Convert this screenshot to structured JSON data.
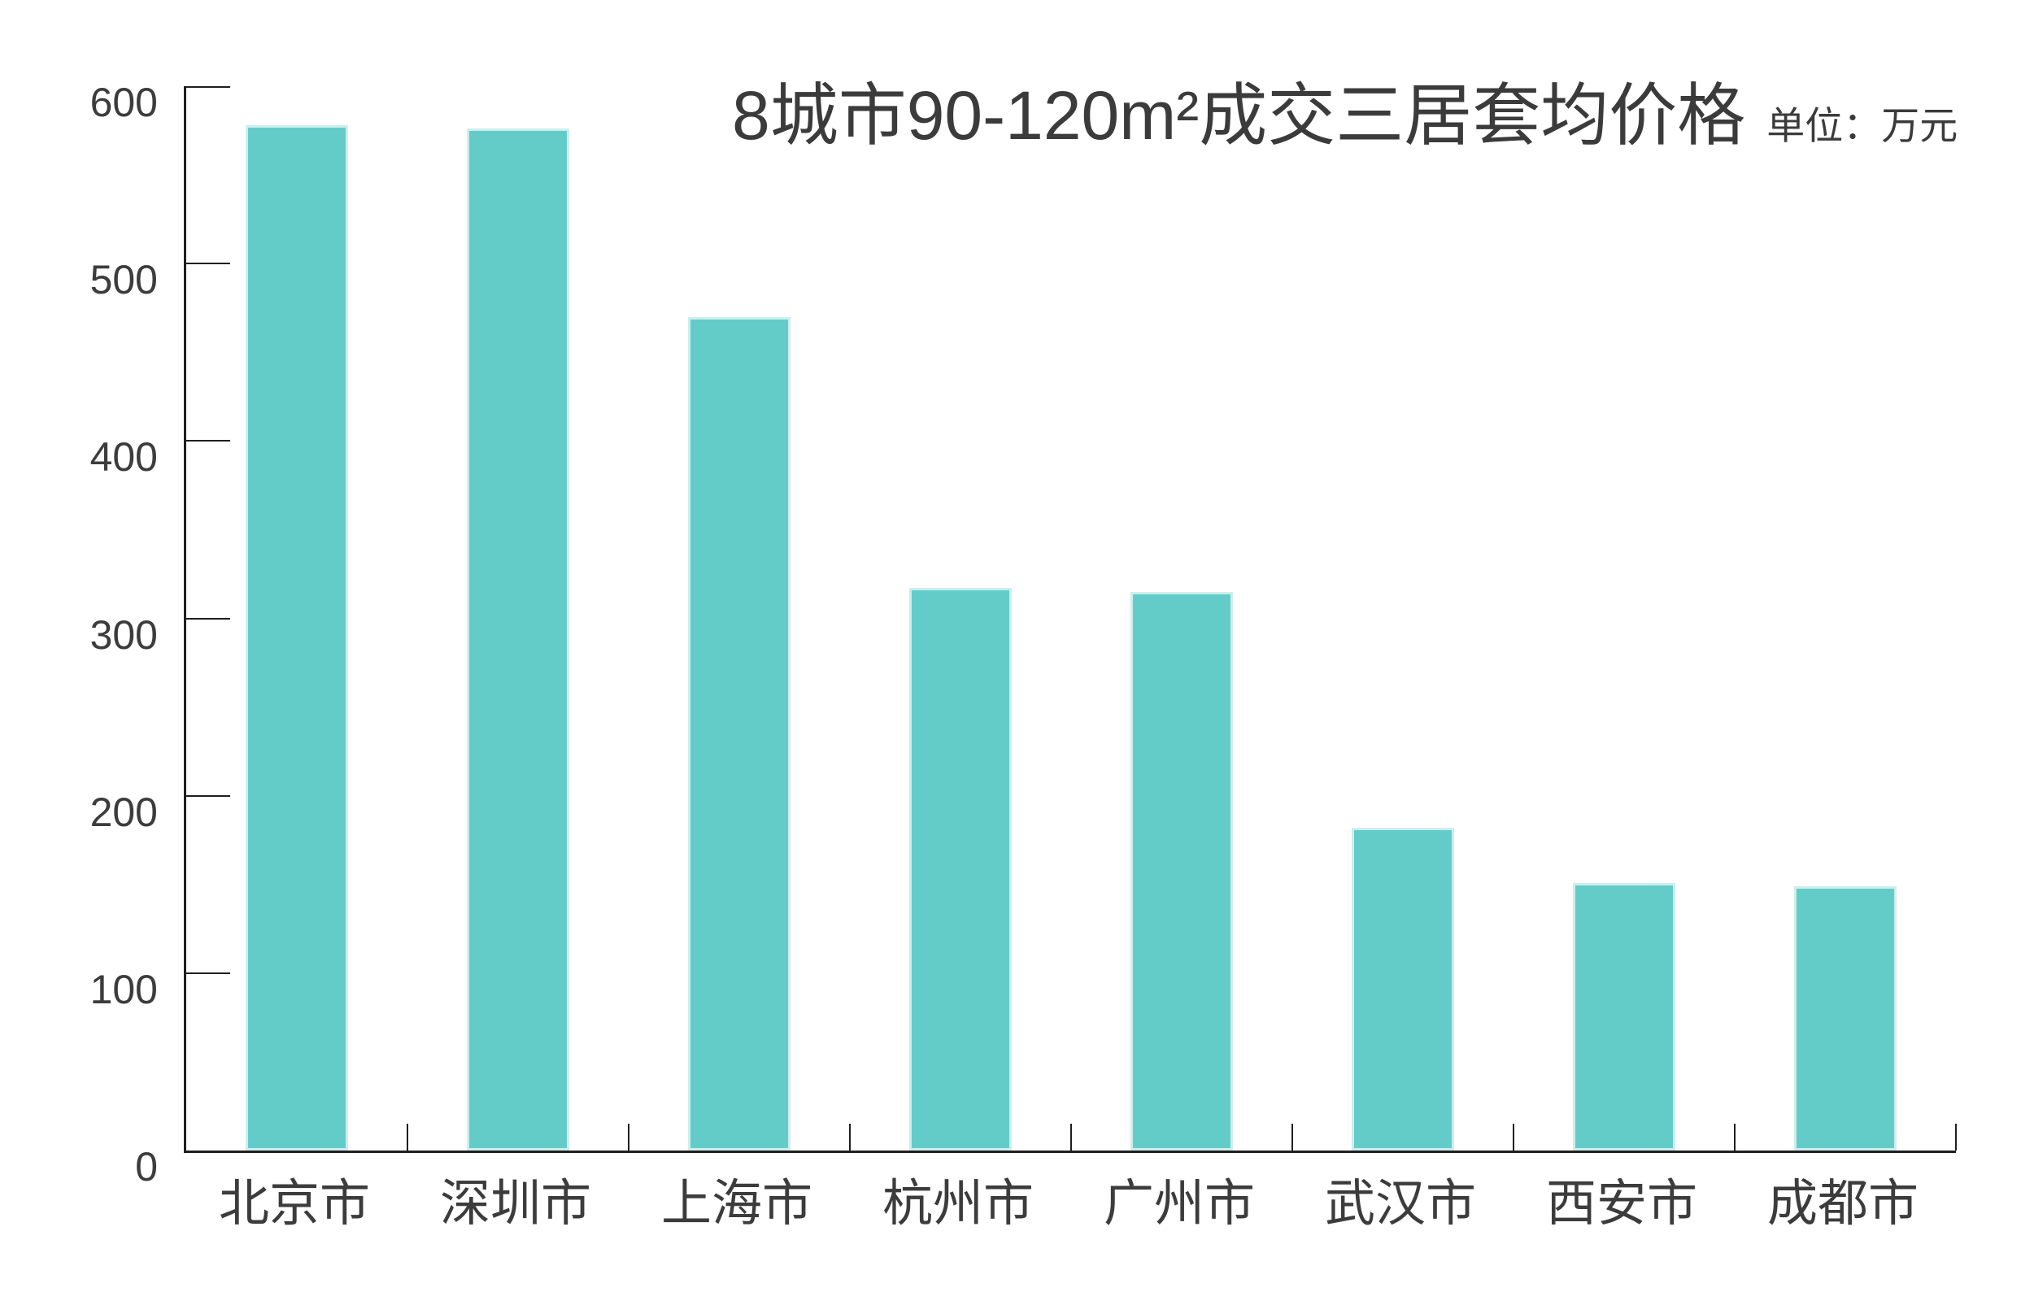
{
  "title": {
    "text": "8城市90-120m²成交三居套均价格",
    "unit_label": "单位：万元"
  },
  "chart_data": {
    "type": "bar",
    "title": "8城市90-120m²成交三居套均价格",
    "unit": "万元",
    "categories": [
      "北京市",
      "深圳市",
      "上海市",
      "杭州市",
      "广州市",
      "武汉市",
      "西安市",
      "成都市"
    ],
    "values": [
      578,
      576,
      470,
      317,
      315,
      182,
      151,
      149
    ],
    "xlabel": "",
    "ylabel": "",
    "ylim": [
      0,
      600
    ],
    "yticks": [
      0,
      100,
      200,
      300,
      400,
      500,
      600
    ],
    "grid": false,
    "legend": "none",
    "bar_color": "#63ccc8",
    "bar_edge_color": "#cdeeec",
    "axis_color": "#1f1f1f",
    "text_color": "#3c3c3c"
  }
}
